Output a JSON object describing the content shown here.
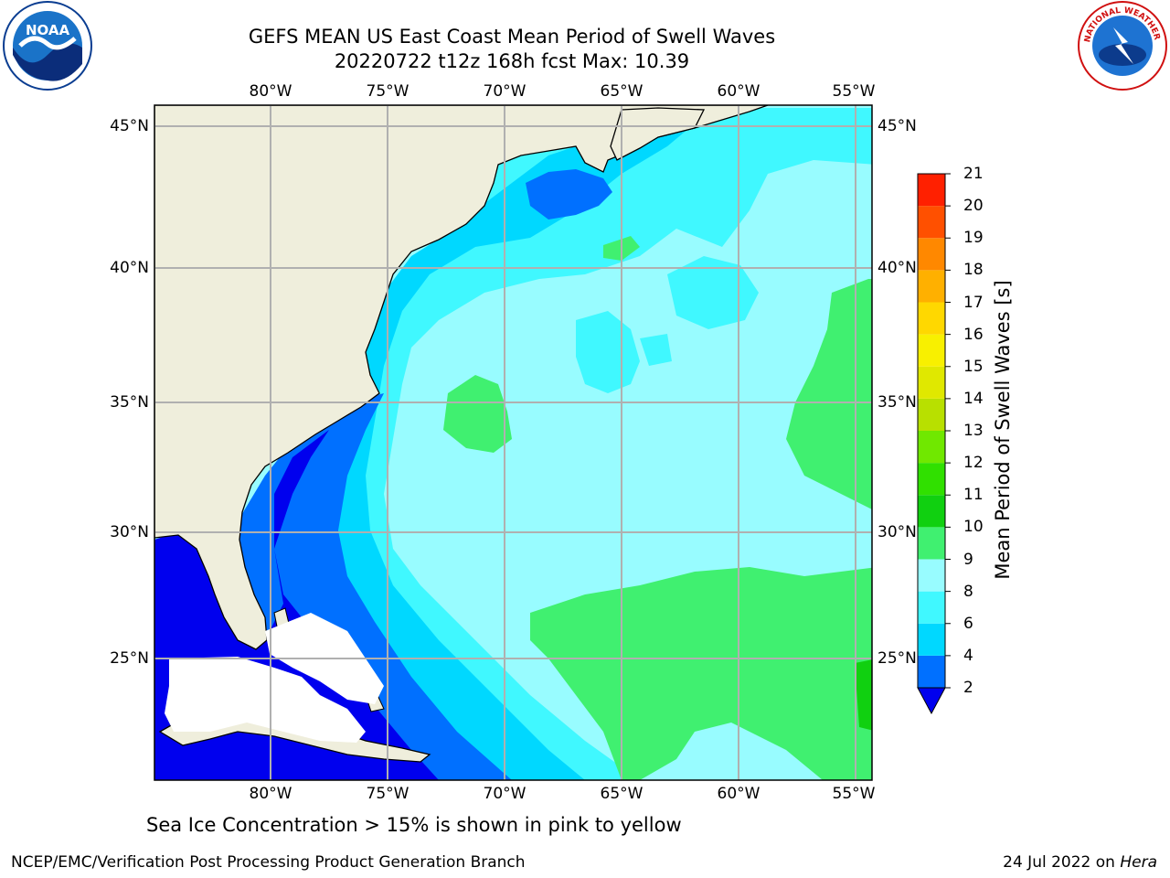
{
  "title": {
    "line1": "GEFS MEAN US East Coast Mean Period of Swell Waves",
    "line2": "20220722 t12z 168h fcst   Max: 10.39"
  },
  "logos": {
    "left": "noaa-logo",
    "left_text": "NOAA",
    "right": "nws-logo",
    "right_text": "NATIONAL WEATHER SERVICE"
  },
  "map": {
    "lon_ticks": [
      "80°W",
      "75°W",
      "70°W",
      "65°W",
      "60°W",
      "55°W"
    ],
    "lat_ticks": [
      "45°N",
      "40°N",
      "35°N",
      "30°N",
      "25°N"
    ],
    "colors": {
      "land": "#efeedc",
      "grid": "#b0b0b0",
      "coast": "#000000",
      "no_data": "#ffffff"
    }
  },
  "colorbar": {
    "label": "Mean Period of Swell Waves [s]",
    "ticks": [
      "2",
      "4",
      "6",
      "8",
      "9",
      "10",
      "11",
      "12",
      "13",
      "14",
      "15",
      "16",
      "17",
      "18",
      "19",
      "20",
      "21"
    ],
    "colors": [
      "#0070ff",
      "#00d8ff",
      "#40f8ff",
      "#98fcff",
      "#40f070",
      "#10d010",
      "#30e000",
      "#70e800",
      "#b8e000",
      "#e0e800",
      "#f8f000",
      "#ffd800",
      "#ffb000",
      "#ff8800",
      "#ff5000",
      "#ff2000"
    ],
    "under_color": "#0000ee"
  },
  "note": "Sea Ice Concentration > 15% is shown in pink to yellow",
  "footer": {
    "left": "NCEP/EMC/Verification Post Processing Product Generation Branch",
    "right_prefix": "24 Jul 2022 on ",
    "right_italic": "Hera"
  }
}
